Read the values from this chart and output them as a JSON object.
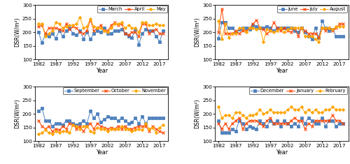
{
  "years": [
    1982,
    1983,
    1984,
    1985,
    1986,
    1987,
    1988,
    1989,
    1990,
    1991,
    1992,
    1993,
    1994,
    1995,
    1996,
    1997,
    1998,
    1999,
    2000,
    2001,
    2002,
    2003,
    2004,
    2005,
    2006,
    2007,
    2008,
    2009,
    2010,
    2011,
    2012,
    2013,
    2014,
    2015,
    2016,
    2017,
    2018
  ],
  "march": [
    200,
    162,
    190,
    185,
    195,
    178,
    205,
    185,
    205,
    215,
    195,
    190,
    205,
    175,
    200,
    175,
    195,
    205,
    200,
    215,
    195,
    195,
    205,
    205,
    210,
    195,
    185,
    180,
    210,
    155,
    195,
    210,
    205,
    205,
    185,
    165,
    205
  ],
  "april": [
    220,
    225,
    195,
    215,
    215,
    215,
    210,
    205,
    230,
    210,
    220,
    215,
    200,
    195,
    205,
    245,
    205,
    215,
    225,
    205,
    205,
    225,
    235,
    225,
    230,
    195,
    190,
    200,
    200,
    185,
    230,
    230,
    195,
    205,
    210,
    195,
    195
  ],
  "may": [
    230,
    230,
    185,
    195,
    205,
    235,
    230,
    215,
    220,
    225,
    225,
    230,
    255,
    215,
    220,
    250,
    220,
    215,
    215,
    205,
    200,
    215,
    230,
    230,
    235,
    215,
    225,
    215,
    215,
    200,
    235,
    235,
    225,
    225,
    230,
    225,
    225
  ],
  "june": [
    178,
    235,
    235,
    215,
    215,
    200,
    210,
    215,
    215,
    210,
    225,
    220,
    215,
    215,
    220,
    215,
    205,
    215,
    215,
    215,
    215,
    215,
    205,
    200,
    215,
    200,
    185,
    175,
    215,
    180,
    240,
    215,
    205,
    210,
    185,
    185,
    185
  ],
  "july": [
    200,
    285,
    195,
    195,
    195,
    205,
    195,
    205,
    205,
    215,
    230,
    245,
    215,
    210,
    195,
    205,
    235,
    215,
    205,
    215,
    205,
    200,
    215,
    185,
    215,
    205,
    195,
    195,
    195,
    180,
    215,
    205,
    215,
    205,
    215,
    230,
    230
  ],
  "august": [
    240,
    175,
    230,
    180,
    195,
    195,
    215,
    215,
    200,
    215,
    215,
    210,
    215,
    165,
    210,
    205,
    200,
    205,
    215,
    200,
    210,
    215,
    215,
    215,
    215,
    185,
    185,
    185,
    175,
    165,
    215,
    215,
    215,
    210,
    220,
    220,
    220
  ],
  "september": [
    210,
    220,
    175,
    175,
    155,
    165,
    165,
    160,
    175,
    175,
    165,
    160,
    165,
    175,
    165,
    210,
    185,
    200,
    170,
    180,
    190,
    185,
    185,
    175,
    185,
    175,
    165,
    170,
    185,
    165,
    190,
    165,
    185,
    185,
    185,
    185,
    185
  ],
  "october": [
    175,
    155,
    145,
    155,
    135,
    145,
    140,
    155,
    145,
    165,
    160,
    145,
    155,
    135,
    155,
    165,
    145,
    165,
    155,
    150,
    145,
    150,
    145,
    155,
    145,
    155,
    145,
    145,
    150,
    155,
    155,
    155,
    135,
    155,
    145,
    135,
    130
  ],
  "november": [
    125,
    130,
    140,
    130,
    125,
    135,
    130,
    135,
    135,
    130,
    160,
    155,
    145,
    155,
    155,
    135,
    130,
    150,
    145,
    145,
    135,
    145,
    145,
    145,
    155,
    145,
    145,
    135,
    140,
    145,
    140,
    165,
    145,
    150,
    130,
    150,
    160
  ],
  "december": [
    175,
    130,
    130,
    130,
    145,
    135,
    175,
    165,
    145,
    155,
    150,
    145,
    175,
    165,
    155,
    175,
    165,
    175,
    155,
    175,
    165,
    155,
    165,
    155,
    185,
    165,
    185,
    175,
    165,
    165,
    185,
    155,
    175,
    175,
    155,
    165,
    165
  ],
  "january": [
    165,
    145,
    165,
    145,
    165,
    175,
    185,
    145,
    165,
    175,
    175,
    175,
    165,
    155,
    175,
    185,
    165,
    165,
    165,
    165,
    165,
    175,
    185,
    175,
    175,
    145,
    165,
    155,
    175,
    175,
    175,
    175,
    175,
    195,
    175,
    175,
    165
  ],
  "february": [
    225,
    185,
    195,
    195,
    185,
    205,
    205,
    195,
    185,
    195,
    195,
    200,
    215,
    200,
    205,
    215,
    205,
    205,
    205,
    205,
    215,
    225,
    215,
    215,
    225,
    205,
    215,
    205,
    215,
    205,
    205,
    215,
    215,
    225,
    215,
    215,
    215
  ],
  "colors": {
    "march": "#4F81BD",
    "april": "#FF4400",
    "may": "#FFA500",
    "june": "#4F81BD",
    "july": "#FF4400",
    "august": "#FFA500",
    "september": "#4F81BD",
    "october": "#FF4400",
    "november": "#FFA500",
    "december": "#4F81BD",
    "january": "#FF4400",
    "february": "#FFA500"
  },
  "ylim": [
    100,
    300
  ],
  "yticks": [
    100,
    150,
    200,
    250,
    300
  ],
  "ylabel": "DSR(W/m²)",
  "xlabel": "Year",
  "xticks": [
    1982,
    1987,
    1992,
    1997,
    2002,
    2007,
    2012,
    2017
  ],
  "subplots": [
    {
      "lines": [
        "march",
        "april",
        "may"
      ],
      "labels": [
        "March",
        "April",
        "May"
      ]
    },
    {
      "lines": [
        "june",
        "july",
        "august"
      ],
      "labels": [
        "June",
        "July",
        "August"
      ]
    },
    {
      "lines": [
        "september",
        "october",
        "november"
      ],
      "labels": [
        "September",
        "October",
        "November"
      ]
    },
    {
      "lines": [
        "december",
        "january",
        "february"
      ],
      "labels": [
        "December",
        "January",
        "February"
      ]
    }
  ]
}
